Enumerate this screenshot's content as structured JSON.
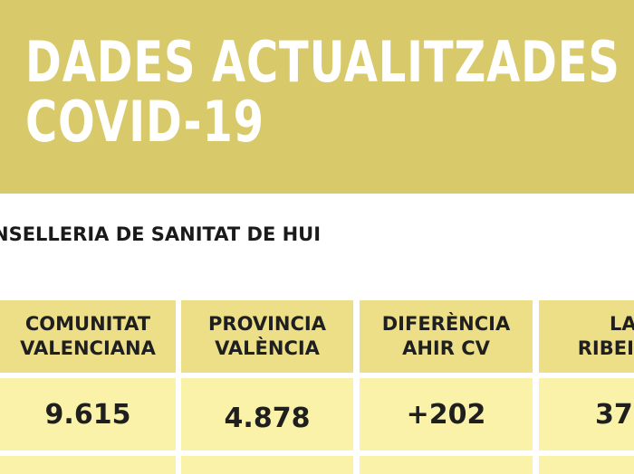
{
  "banner": {
    "title_line1": "DADES ACTUALITZADES",
    "title_line2": "COVID-19",
    "background": "#d8c96b"
  },
  "source_line": "NSELLERIA DE SANITAT DE HUI",
  "table": {
    "headers": [
      {
        "line1": "COMUNITAT",
        "line2": "VALENCIANA"
      },
      {
        "line1": "PROVINCIA",
        "line2": "VALÈNCIA"
      },
      {
        "line1": "DIFERÈNCIA",
        "line2": "AHIR CV"
      },
      {
        "line1": "LA",
        "line2": "RIBEI"
      }
    ],
    "values": [
      "9.615",
      "4.878",
      "+202",
      "37"
    ],
    "header_color": "#ecdf88",
    "value_color": "#f9f2a8"
  }
}
